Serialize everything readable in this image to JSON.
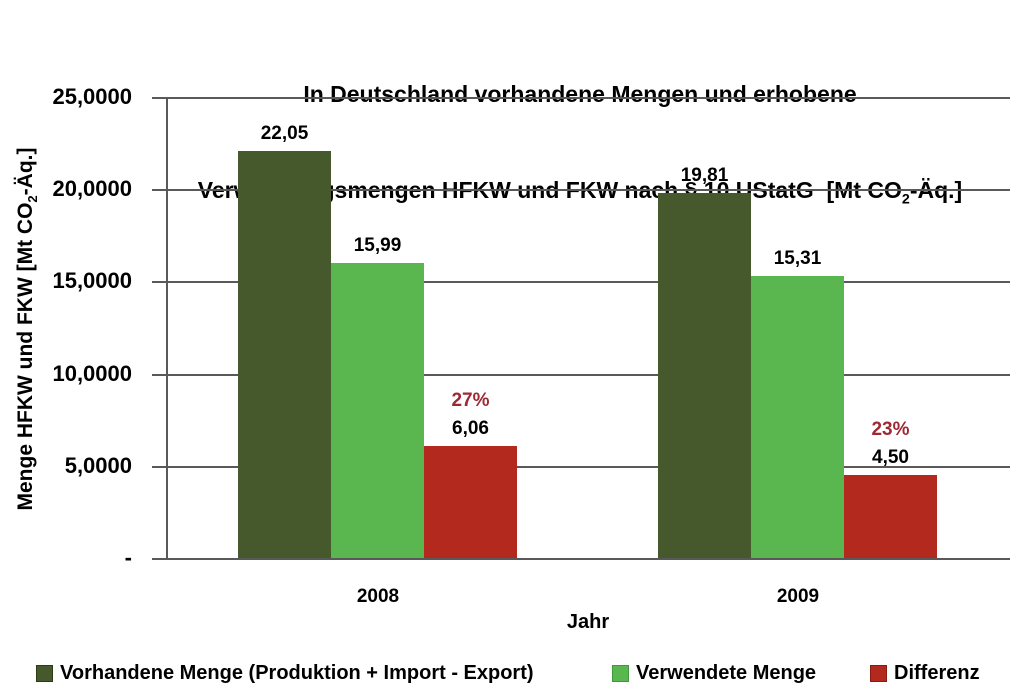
{
  "colors": {
    "axis": "#595959",
    "pct_text": "#9E2833",
    "background": "#FFFFFF"
  },
  "chart_data": {
    "type": "bar",
    "title": "In Deutschland vorhandene Mengen und erhobene Verwendungsmengen HFKW und FKW nach § 10 UStatG [Mt CO₂-Äq.]",
    "title_lines": {
      "line1": "In Deutschland vorhandene Mengen und erhobene",
      "line2_pre": "Verwendungsmengen HFKW und FKW nach § 10 UStatG  [Mt CO",
      "line2_sub": "2",
      "line2_post": "-Äq.]"
    },
    "xlabel": "Jahr",
    "ylabel": "Menge HFKW und FKW [Mt CO₂-Äq.]",
    "ylabel_parts": {
      "pre": "Menge HFKW und FKW [Mt CO",
      "sub": "2",
      "post": "-Äq.]"
    },
    "ylim": [
      0,
      25
    ],
    "yticks": [
      "25,0000",
      "20,0000",
      "15,0000",
      "10,0000",
      "5,0000",
      "-"
    ],
    "grid": true,
    "legend_position": "bottom",
    "categories": [
      "2008",
      "2009"
    ],
    "series": [
      {
        "name": "Vorhandene Menge (Produktion + Import - Export)",
        "slug": "vorhandene-menge",
        "color": "#46592C",
        "edge": "#2D3C17",
        "values": [
          22.05,
          19.81
        ],
        "labels": [
          "22,05",
          "19,81"
        ]
      },
      {
        "name": "Verwendete Menge",
        "slug": "verwendete-menge",
        "color": "#5AB64F",
        "edge": "#3F9A3A",
        "values": [
          15.99,
          15.31
        ],
        "labels": [
          "15,99",
          "15,31"
        ]
      },
      {
        "name": "Differenz",
        "slug": "differenz",
        "color": "#B3291E",
        "edge": "#8A1D13",
        "values": [
          6.06,
          4.5
        ],
        "labels": [
          "6,06",
          "4,50"
        ],
        "pct_labels": [
          "27%",
          "23%"
        ]
      }
    ]
  }
}
